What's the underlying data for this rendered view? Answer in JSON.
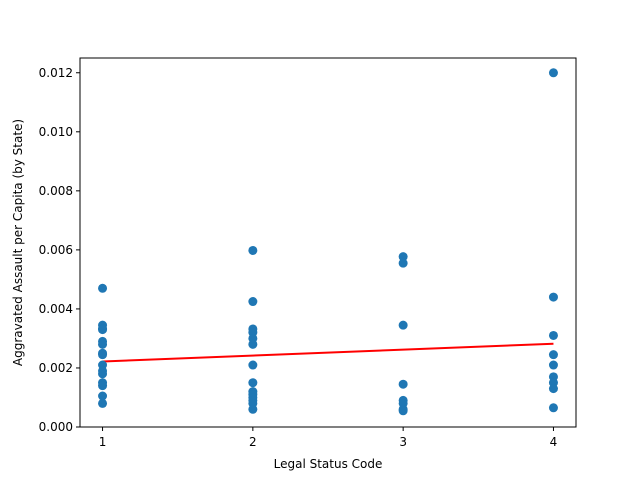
{
  "chart_data": {
    "type": "scatter",
    "title": "",
    "xlabel": "Legal Status Code",
    "ylabel": "Aggravated Assault per Capita (by State)",
    "xlim": [
      0.85,
      4.15
    ],
    "ylim": [
      0.0,
      0.0125
    ],
    "xticks": [
      1,
      2,
      3,
      4
    ],
    "xtick_labels": [
      "1",
      "2",
      "3",
      "4"
    ],
    "yticks": [
      0.0,
      0.002,
      0.004,
      0.006,
      0.008,
      0.01,
      0.012
    ],
    "ytick_labels": [
      "0.000",
      "0.002",
      "0.004",
      "0.006",
      "0.008",
      "0.010",
      "0.012"
    ],
    "grid": false,
    "point_color": "#1f77b4",
    "line_color": "#ff0000",
    "points": {
      "x": [
        1,
        1,
        1,
        1,
        1,
        1,
        1,
        1,
        1,
        1,
        1,
        1,
        1,
        1,
        1,
        2,
        2,
        2,
        2,
        2,
        2,
        2,
        2,
        2,
        2,
        2,
        2,
        2,
        2,
        3,
        3,
        3,
        3,
        3,
        3,
        3,
        3,
        4,
        4,
        4,
        4,
        4,
        4,
        4,
        4,
        4
      ],
      "y": [
        0.0047,
        0.00345,
        0.00333,
        0.0033,
        0.0029,
        0.0028,
        0.0025,
        0.00245,
        0.0021,
        0.0019,
        0.0018,
        0.0015,
        0.0014,
        0.00105,
        0.0008,
        0.00598,
        0.00425,
        0.00332,
        0.0032,
        0.003,
        0.0028,
        0.0021,
        0.0015,
        0.0012,
        0.0011,
        0.001,
        0.0009,
        0.0008,
        0.0006,
        0.00577,
        0.00555,
        0.00345,
        0.00145,
        0.0009,
        0.0008,
        0.0006,
        0.00055,
        0.012,
        0.0044,
        0.0031,
        0.00245,
        0.0021,
        0.0017,
        0.0015,
        0.0013,
        0.00065
      ]
    },
    "trend_line": {
      "x": [
        1,
        4
      ],
      "y": [
        0.00222,
        0.00282
      ]
    }
  }
}
